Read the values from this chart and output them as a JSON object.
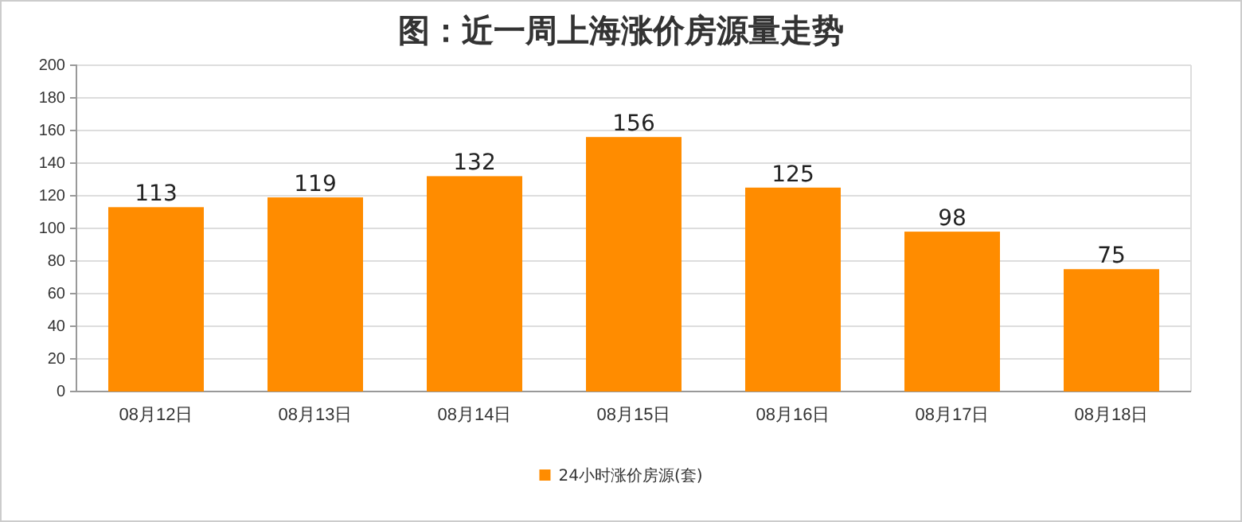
{
  "chart_data": {
    "type": "bar",
    "title": "图：近一周上海涨价房源量走势",
    "categories": [
      "08月12日",
      "08月13日",
      "08月14日",
      "08月15日",
      "08月16日",
      "08月17日",
      "08月18日"
    ],
    "series": [
      {
        "name": "24小时涨价房源(套)",
        "color": "#ff8c00",
        "values": [
          113,
          119,
          132,
          156,
          125,
          98,
          75
        ]
      }
    ],
    "ylim": [
      0,
      200
    ],
    "yticks": [
      0,
      20,
      40,
      60,
      80,
      100,
      120,
      140,
      160,
      180,
      200
    ],
    "grid": "y",
    "legend": "bottom",
    "data_labels": true
  }
}
